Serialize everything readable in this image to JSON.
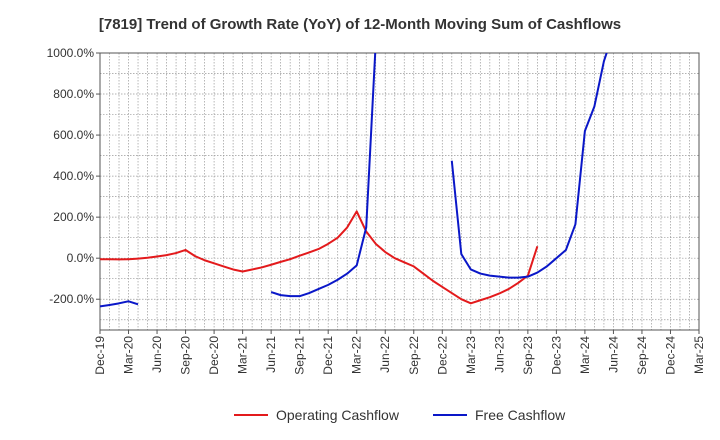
{
  "chart_data": {
    "type": "line",
    "title": "[7819]  Trend of Growth Rate (YoY) of 12-Month Moving Sum of Cashflows",
    "xlabel": "",
    "ylabel": "",
    "ylim": [
      -350,
      1000
    ],
    "yticks": [
      -200,
      0,
      200,
      400,
      600,
      800,
      1000
    ],
    "ytick_labels": [
      "-200.0%",
      "0.0%",
      "200.0%",
      "400.0%",
      "600.0%",
      "800.0%",
      "1000.0%"
    ],
    "xlim": [
      "2019-12",
      "2025-03"
    ],
    "xtick_labels": [
      "Dec-19",
      "Mar-20",
      "Jun-20",
      "Sep-20",
      "Dec-20",
      "Mar-21",
      "Jun-21",
      "Sep-21",
      "Dec-21",
      "Mar-22",
      "Jun-22",
      "Sep-22",
      "Dec-22",
      "Mar-23",
      "Jun-23",
      "Sep-23",
      "Dec-23",
      "Mar-24",
      "Jun-24",
      "Sep-24",
      "Dec-24",
      "Mar-25"
    ],
    "grid": true,
    "legend_position": "bottom-center",
    "series": [
      {
        "name": "Operating Cashflow",
        "color": "#e31a1c",
        "points": [
          [
            "2019-12",
            -5
          ],
          [
            "2020-01",
            -5
          ],
          [
            "2020-02",
            -6
          ],
          [
            "2020-03",
            -5
          ],
          [
            "2020-04",
            -2
          ],
          [
            "2020-05",
            2
          ],
          [
            "2020-06",
            8
          ],
          [
            "2020-07",
            15
          ],
          [
            "2020-08",
            25
          ],
          [
            "2020-09",
            40
          ],
          [
            "2020-10",
            10
          ],
          [
            "2020-11",
            -10
          ],
          [
            "2020-12",
            -25
          ],
          [
            "2021-01",
            -40
          ],
          [
            "2021-02",
            -55
          ],
          [
            "2021-03",
            -65
          ],
          [
            "2021-04",
            -55
          ],
          [
            "2021-05",
            -45
          ],
          [
            "2021-06",
            -32
          ],
          [
            "2021-07",
            -18
          ],
          [
            "2021-08",
            -5
          ],
          [
            "2021-09",
            12
          ],
          [
            "2021-10",
            28
          ],
          [
            "2021-11",
            45
          ],
          [
            "2021-12",
            70
          ],
          [
            "2022-01",
            100
          ],
          [
            "2022-02",
            150
          ],
          [
            "2022-03",
            228
          ],
          [
            "2022-04",
            130
          ],
          [
            "2022-05",
            70
          ],
          [
            "2022-06",
            30
          ],
          [
            "2022-07",
            0
          ],
          [
            "2022-08",
            -20
          ],
          [
            "2022-09",
            -40
          ],
          [
            "2022-10",
            -75
          ],
          [
            "2022-11",
            -110
          ],
          [
            "2022-12",
            -140
          ],
          [
            "2023-01",
            -170
          ],
          [
            "2023-02",
            -200
          ],
          [
            "2023-03",
            -220
          ],
          [
            "2023-04",
            -205
          ],
          [
            "2023-05",
            -190
          ],
          [
            "2023-06",
            -172
          ],
          [
            "2023-07",
            -150
          ],
          [
            "2023-08",
            -120
          ],
          [
            "2023-09",
            -85
          ],
          [
            "2023-10",
            58
          ]
        ]
      },
      {
        "name": "Free Cashflow",
        "color": "#0a17c8",
        "points": [
          [
            "2019-12",
            -235
          ],
          [
            "2020-01",
            -228
          ],
          [
            "2020-02",
            -220
          ],
          [
            "2020-03",
            -210
          ],
          [
            "2020-04",
            -225
          ],
          null,
          [
            "2021-06",
            -165
          ],
          [
            "2021-07",
            -180
          ],
          [
            "2021-08",
            -185
          ],
          [
            "2021-09",
            -185
          ],
          [
            "2021-10",
            -170
          ],
          [
            "2021-11",
            -150
          ],
          [
            "2021-12",
            -130
          ],
          [
            "2022-01",
            -105
          ],
          [
            "2022-02",
            -75
          ],
          [
            "2022-03",
            -35
          ],
          [
            "2022-04",
            150
          ],
          [
            "2022-05",
            1050
          ],
          null,
          [
            "2023-01",
            475
          ],
          [
            "2023-02",
            20
          ],
          [
            "2023-03",
            -55
          ],
          [
            "2023-04",
            -75
          ],
          [
            "2023-05",
            -85
          ],
          [
            "2023-06",
            -90
          ],
          [
            "2023-07",
            -95
          ],
          [
            "2023-08",
            -95
          ],
          [
            "2023-09",
            -90
          ],
          [
            "2023-10",
            -70
          ],
          [
            "2023-11",
            -40
          ],
          [
            "2023-12",
            0
          ],
          [
            "2024-01",
            40
          ],
          [
            "2024-02",
            165
          ],
          [
            "2024-03",
            620
          ],
          [
            "2024-04",
            740
          ],
          [
            "2024-05",
            960
          ],
          [
            "2024-06",
            1100
          ]
        ]
      }
    ]
  }
}
